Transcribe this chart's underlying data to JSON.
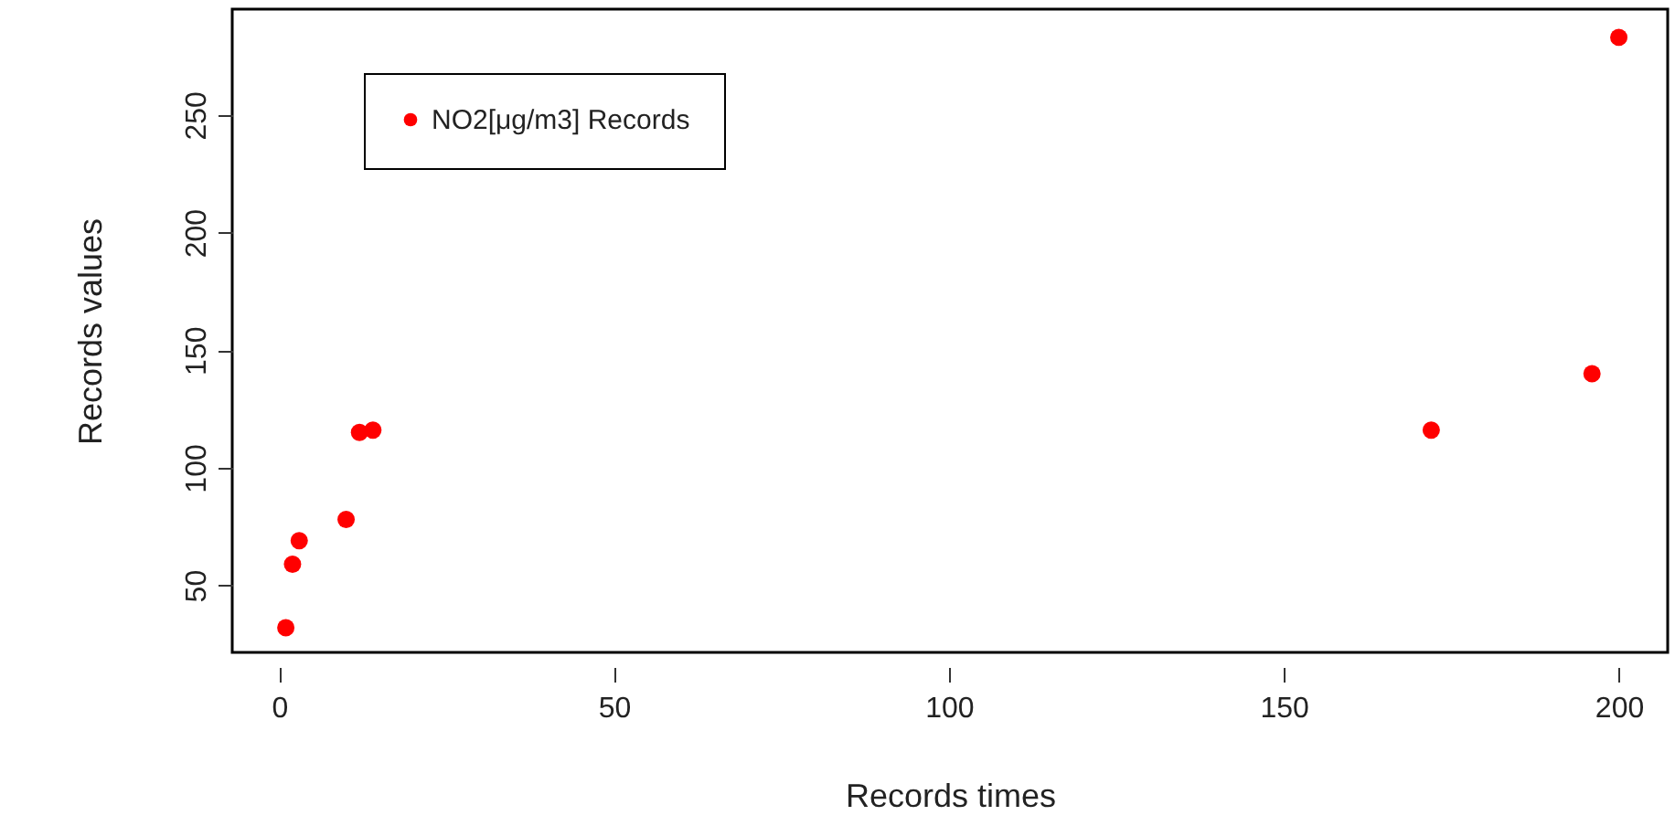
{
  "chart_data": {
    "type": "scatter",
    "xlabel": "Records times",
    "ylabel": "Records values",
    "x": [
      1,
      2,
      3,
      10,
      12,
      14,
      172,
      196,
      200
    ],
    "series": [
      {
        "name": "NO2[μg/m3] Records",
        "color": "#ff0000",
        "values": [
          32,
          59,
          69,
          78,
          115,
          116,
          116,
          140,
          283
        ]
      }
    ],
    "xlim": [
      -7,
      207.3
    ],
    "ylim": [
      21.5,
      295
    ],
    "xticks": [
      0,
      50,
      100,
      150,
      200
    ],
    "yticks": [
      50,
      100,
      150,
      200,
      250
    ],
    "grid": false,
    "legend": "top left",
    "marker": "circle"
  }
}
